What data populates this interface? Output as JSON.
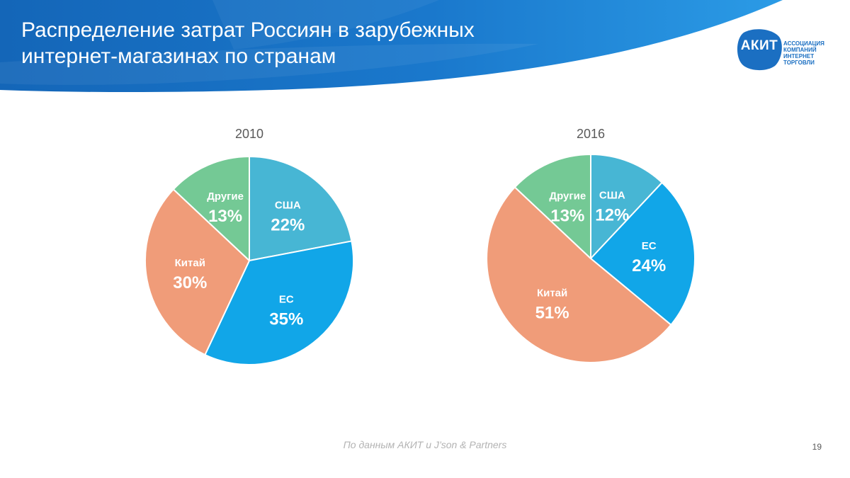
{
  "slide": {
    "title_lines": [
      "Распределение затрат Россиян в зарубежных",
      "интернет-магазинах по странам"
    ],
    "source": "По данным АКИТ и J’son & Partners",
    "page_number": "19"
  },
  "logo": {
    "abbr": "АКИТ",
    "text_lines": [
      "АССОЦИАЦИЯ",
      "КОМПАНИЙ",
      "ИНТЕРНЕТ",
      "ТОРГОВЛИ"
    ]
  },
  "colors": {
    "header_dark": "#1466b8",
    "header_light": "#2b9be6",
    "logo_blue": "#1b6fc2",
    "usa": "#47b6d4",
    "eu": "#11a6e8",
    "china": "#f09c79",
    "other": "#74c995"
  },
  "chart_data": [
    {
      "type": "pie",
      "title": "2010",
      "slices": [
        {
          "label": "США",
          "value": 22,
          "display": "22%",
          "color": "#47b6d4"
        },
        {
          "label": "ЕС",
          "value": 35,
          "display": "35%",
          "color": "#11a6e8"
        },
        {
          "label": "Китай",
          "value": 30,
          "display": "30%",
          "color": "#f09c79"
        },
        {
          "label": "Другие",
          "value": 13,
          "display": "13%",
          "color": "#74c995"
        }
      ]
    },
    {
      "type": "pie",
      "title": "2016",
      "slices": [
        {
          "label": "США",
          "value": 12,
          "display": "12%",
          "color": "#47b6d4"
        },
        {
          "label": "ЕС",
          "value": 24,
          "display": "24%",
          "color": "#11a6e8"
        },
        {
          "label": "Китай",
          "value": 51,
          "display": "51%",
          "color": "#f09c79"
        },
        {
          "label": "Другие",
          "value": 13,
          "display": "13%",
          "color": "#74c995"
        }
      ]
    }
  ]
}
